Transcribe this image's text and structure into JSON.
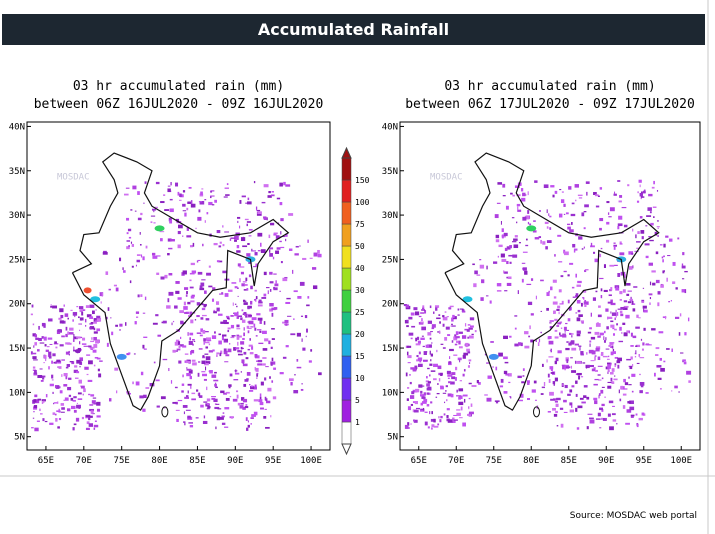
{
  "header": {
    "title": "Accumulated Rainfall"
  },
  "maps": [
    {
      "title_line1": "03 hr accumulated rain (mm)",
      "title_line2": "between 06Z 16JUL2020 - 09Z 16JUL2020",
      "lat_labels": [
        "40N",
        "35N",
        "30N",
        "25N",
        "20N",
        "15N",
        "10N",
        "5N"
      ],
      "lon_labels": [
        "65E",
        "70E",
        "75E",
        "80E",
        "85E",
        "90E",
        "95E",
        "100E"
      ],
      "watermark": "MOSDAC"
    },
    {
      "title_line1": "03 hr accumulated rain (mm)",
      "title_line2": "between 06Z 17JUL2020 - 09Z 17JUL2020",
      "lat_labels": [
        "40N",
        "35N",
        "30N",
        "25N",
        "20N",
        "15N",
        "10N",
        "5N"
      ],
      "lon_labels": [
        "65E",
        "70E",
        "75E",
        "80E",
        "85E",
        "90E",
        "95E",
        "100E"
      ],
      "watermark": "MOSDAC"
    }
  ],
  "colorbar": {
    "labels": [
      "1",
      "5",
      "10",
      "15",
      "20",
      "25",
      "30",
      "40",
      "50",
      "75",
      "100",
      "150"
    ]
  },
  "source": "Source: MOSDAC web portal"
}
